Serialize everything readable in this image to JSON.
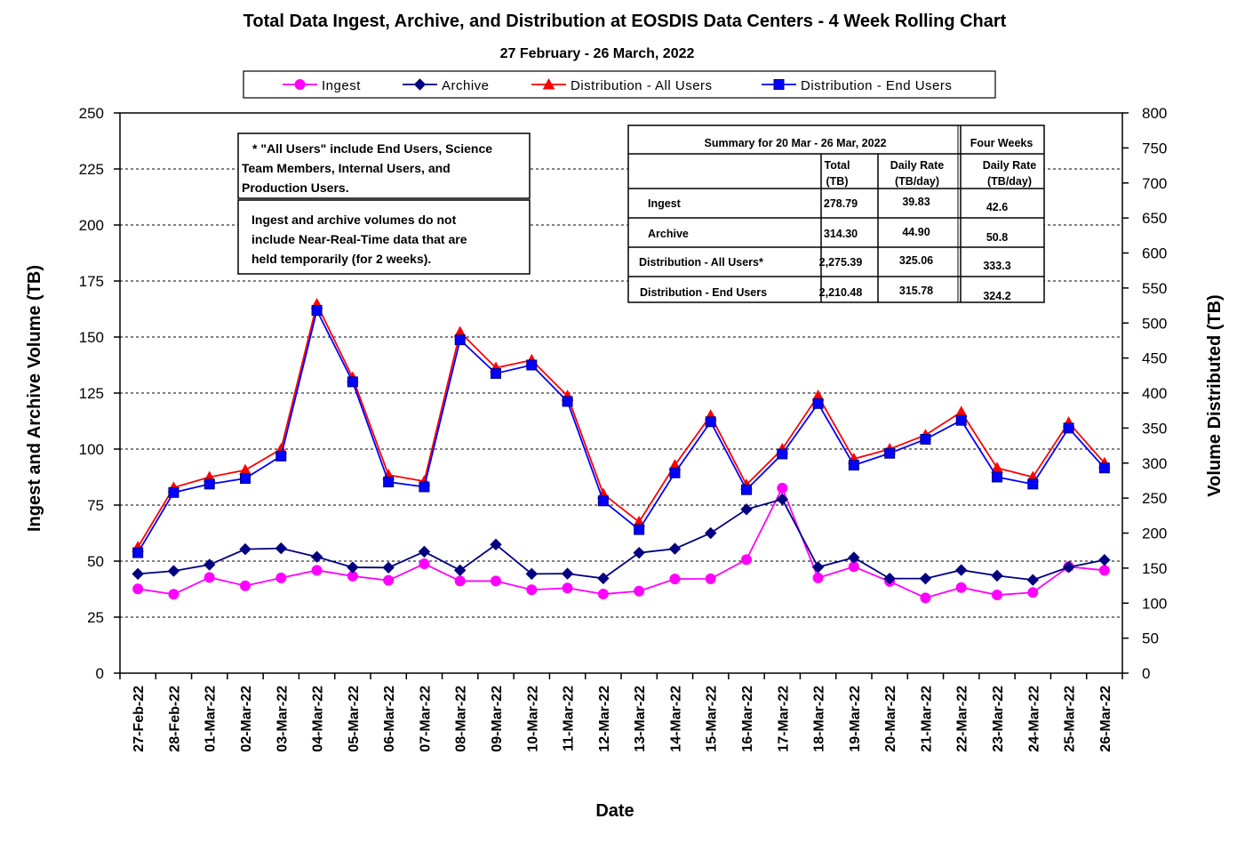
{
  "chart_data": {
    "type": "line",
    "title": "Total Data Ingest, Archive, and  Distribution at EOSDIS Data Centers - 4 Week Rolling Chart",
    "subtitle": "27  February    -  26  March,  2022",
    "xlabel": "Date",
    "ylabel_left": "Ingest and Archive Volume (TB)",
    "ylabel_right": "Volume Distributed (TB)",
    "ylim_left": [
      0,
      250
    ],
    "ylim_right": [
      0,
      800
    ],
    "yticks_left": [
      "0",
      "25",
      "50",
      "75",
      "100",
      "125",
      "150",
      "175",
      "200",
      "225",
      "250"
    ],
    "yticks_right": [
      "0",
      "50",
      "100",
      "150",
      "200",
      "250",
      "300",
      "350",
      "400",
      "450",
      "500",
      "550",
      "600",
      "650",
      "700",
      "750",
      "800"
    ],
    "grid": true,
    "legend_position": "top",
    "categories": [
      "27-Feb-22",
      "28-Feb-22",
      "01-Mar-22",
      "02-Mar-22",
      "03-Mar-22",
      "04-Mar-22",
      "05-Mar-22",
      "06-Mar-22",
      "07-Mar-22",
      "08-Mar-22",
      "09-Mar-22",
      "10-Mar-22",
      "11-Mar-22",
      "12-Mar-22",
      "13-Mar-22",
      "14-Mar-22",
      "15-Mar-22",
      "16-Mar-22",
      "17-Mar-22",
      "18-Mar-22",
      "19-Mar-22",
      "20-Mar-22",
      "21-Mar-22",
      "22-Mar-22",
      "23-Mar-22",
      "24-Mar-22",
      "25-Mar-22",
      "26-Mar-22"
    ],
    "series": [
      {
        "name": "Ingest",
        "axis": "left",
        "color": "#ff00ff",
        "marker": "circle",
        "values": [
          37.6,
          35.2,
          42.7,
          39.0,
          42.5,
          45.9,
          43.3,
          41.4,
          48.8,
          41.1,
          41.1,
          37.2,
          38.0,
          35.3,
          36.6,
          42.0,
          42.1,
          50.7,
          82.6,
          42.5,
          47.5,
          40.9,
          33.6,
          38.2,
          34.9,
          36.0,
          47.5,
          45.9
        ]
      },
      {
        "name": "Archive",
        "axis": "left",
        "color": "#000080",
        "marker": "diamond",
        "values": [
          44.3,
          45.6,
          48.4,
          55.3,
          55.7,
          51.9,
          47.2,
          47.1,
          54.2,
          45.9,
          57.4,
          44.3,
          44.4,
          42.3,
          53.7,
          55.5,
          62.5,
          73.1,
          77.6,
          47.3,
          51.6,
          42.2,
          42.2,
          46.0,
          43.5,
          41.6,
          47.3,
          50.5
        ]
      },
      {
        "name": "Distribution - All Users",
        "axis": "right",
        "color": "#ff0000",
        "marker": "triangle",
        "values": [
          180,
          265,
          280,
          290,
          320,
          527,
          422,
          283,
          274,
          487,
          436,
          447,
          396,
          256,
          216,
          297,
          368,
          269,
          320,
          396,
          306,
          320,
          340,
          373,
          293,
          280,
          358,
          300
        ]
      },
      {
        "name": "Distribution - End Users",
        "axis": "right",
        "color": "#0000ff",
        "marker": "square",
        "values": [
          172,
          258,
          270,
          278,
          310,
          518,
          416,
          273,
          266,
          476,
          428,
          440,
          388,
          246,
          205,
          286,
          359,
          262,
          313,
          385,
          297,
          314,
          334,
          361,
          280,
          270,
          350,
          293
        ]
      }
    ],
    "annotations": {
      "note_all_users": [
        "* \"All Users\" include End Users, Science",
        "Team Members,  Internal Users, and",
        "Production Users."
      ],
      "note_nrt": [
        "Ingest and archive volumes do not",
        "include Near-Real-Time data that are",
        "held temporarily (for 2 weeks)."
      ]
    },
    "summary_table": {
      "header_period": "Summary  for  20  Mar   -  26  Mar,  2022",
      "header_four_weeks": "Four Weeks",
      "col_total": [
        "Total",
        "(TB)"
      ],
      "col_daily": [
        "Daily Rate",
        "(TB/day)"
      ],
      "col_four_daily": [
        "Daily Rate",
        "(TB/day)"
      ],
      "rows": [
        {
          "label": "Ingest",
          "total": "278.79",
          "daily": "39.83",
          "four": "42.6"
        },
        {
          "label": "Archive",
          "total": "314.30",
          "daily": "44.90",
          "four": "50.8"
        },
        {
          "label": "Distribution - All Users*",
          "total": "2,275.39",
          "daily": "325.06",
          "four": "333.3"
        },
        {
          "label": "Distribution - End Users",
          "total": "2,210.48",
          "daily": "315.78",
          "four": "324.2"
        }
      ]
    }
  }
}
